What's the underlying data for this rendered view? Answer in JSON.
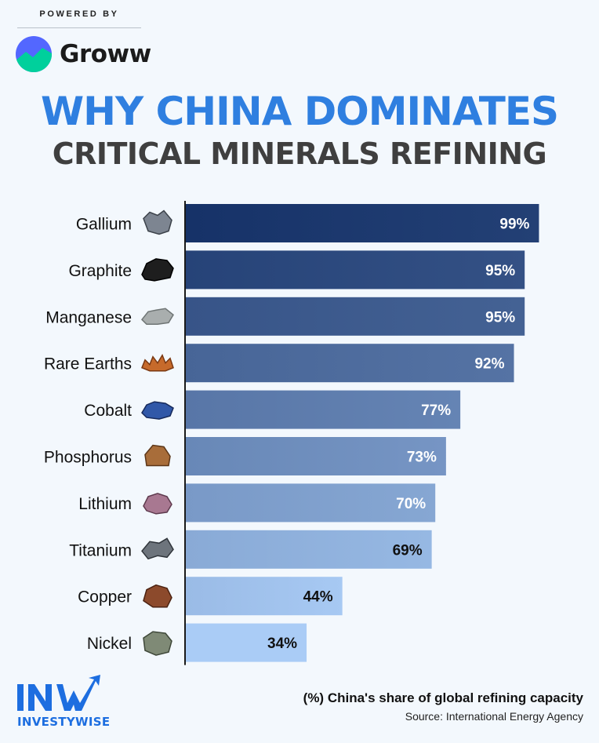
{
  "header": {
    "powered_by": "POWERED BY",
    "brand_name": "Groww"
  },
  "title": {
    "line1": "WHY CHINA DOMINATES",
    "line2": "CRITICAL MINERALS REFINING"
  },
  "footer": {
    "logo_text": "INVESTYWISE",
    "caption": "(%) China's share of global refining capacity",
    "source": "Source: International Energy Agency"
  },
  "colors": {
    "accent": "#2f7fe0",
    "title_dark": "#3f3f3f",
    "bar_dark": "#1a3a75",
    "bar_light": "#a8c8f2"
  },
  "chart_data": {
    "type": "bar",
    "orientation": "horizontal",
    "categories": [
      "Gallium",
      "Graphite",
      "Manganese",
      "Rare Earths",
      "Cobalt",
      "Phosphorus",
      "Lithium",
      "Titanium",
      "Copper",
      "Nickel"
    ],
    "values": [
      99,
      95,
      95,
      92,
      77,
      73,
      70,
      69,
      44,
      34
    ],
    "value_labels": [
      "99%",
      "95%",
      "95%",
      "92%",
      "77%",
      "73%",
      "70%",
      "69%",
      "44%",
      "34%"
    ],
    "icons": [
      "gallium-icon",
      "graphite-icon",
      "manganese-icon",
      "rare-earths-icon",
      "cobalt-icon",
      "phosphorus-icon",
      "lithium-icon",
      "titanium-icon",
      "copper-icon",
      "nickel-icon"
    ],
    "xlim": [
      0,
      100
    ],
    "grid": false,
    "legend": "none"
  }
}
